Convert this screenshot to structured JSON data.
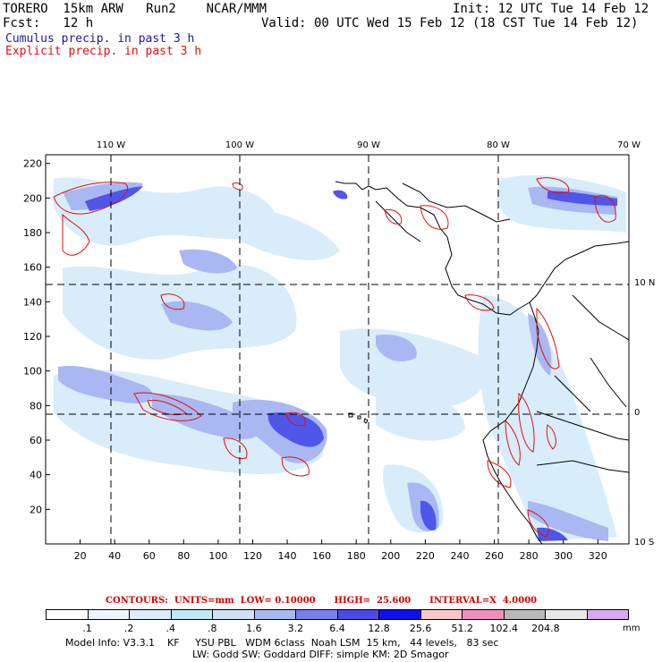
{
  "header": {
    "model_line": "TORERO  15km ARW   Run2    NCAR/MMM",
    "init_line": "Init: 12 UTC Tue 14 Feb 12",
    "fcst_line": "Fcst:   12 h",
    "valid_line": "Valid: 00 UTC Wed 15 Feb 12 (18 CST Tue 14 Feb 12)",
    "field1": "Cumulus precip. in past 3 h",
    "field2": "Explicit precip. in past 3 h",
    "field1_color": "#1a1aa0",
    "field2_color": "#e01010"
  },
  "map": {
    "top_labels": [
      "110 W",
      "100 W",
      "90 W",
      "80 W",
      "70 W"
    ],
    "right_labels": [
      "10 N",
      "0",
      "10 S"
    ],
    "left_ticks": [
      "220",
      "200",
      "180",
      "160",
      "140",
      "120",
      "100",
      "80",
      "60",
      "40",
      "20"
    ],
    "bottom_ticks": [
      "20",
      "40",
      "60",
      "80",
      "100",
      "120",
      "140",
      "160",
      "180",
      "200",
      "220",
      "240",
      "260",
      "280",
      "300",
      "320"
    ],
    "coastline_color": "#000000",
    "contour_color": "#e01010"
  },
  "contours": {
    "text": "CONTOURS:  UNITS=mm  LOW= 0.10000      HIGH=  25.600      INTERVAL=X  4.0000"
  },
  "colorbar": {
    "labels": [
      ".1",
      ".2",
      ".4",
      ".8",
      "1.6",
      "3.2",
      "6.4",
      "12.8",
      "25.6",
      "51.2",
      "102.4",
      "204.8"
    ],
    "unit": "mm",
    "colors": [
      "#ffffff",
      "#eef4fb",
      "#d9ecfa",
      "#c0e6f7",
      "#cfe0fb",
      "#a8b8f2",
      "#7780ec",
      "#4a4ae8",
      "#1010ee",
      "#f8c8c8",
      "#f090b8",
      "#b8b8b8",
      "#e8e8e8",
      "#d8a8f0"
    ]
  },
  "footer": {
    "line1": "Model Info: V3.3.1    KF     YSU PBL   WDM 6class  Noah LSM  15 km,   44 levels,   83 sec",
    "line2": "LW: Godd SW: Goddard DIFF: simple KM: 2D Smagor"
  }
}
